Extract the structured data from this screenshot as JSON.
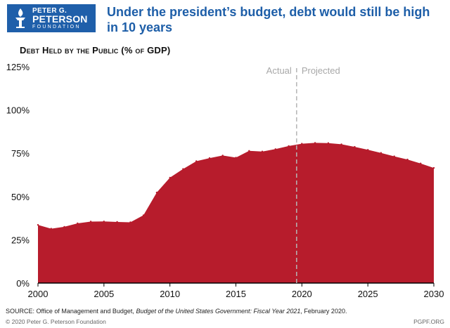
{
  "header": {
    "logo_line1": "PETER G.",
    "logo_line2": "PETERSON",
    "logo_line3": "FOUNDATION",
    "logo_icon": "torch-icon",
    "title": "Under the president’s budget, debt would still be high in 10 years"
  },
  "chart_data": {
    "type": "area",
    "title": "Debt Held by the Public (% of GDP)",
    "xlabel": "",
    "ylabel": "",
    "x": [
      2000,
      2001,
      2002,
      2003,
      2004,
      2005,
      2006,
      2007,
      2008,
      2009,
      2010,
      2011,
      2012,
      2013,
      2014,
      2015,
      2016,
      2017,
      2018,
      2019,
      2020,
      2021,
      2022,
      2023,
      2024,
      2025,
      2026,
      2027,
      2028,
      2029,
      2030
    ],
    "series": [
      {
        "name": "Debt held by the public",
        "values": [
          33.6,
          31.4,
          32.5,
          34.5,
          35.5,
          35.6,
          35.3,
          35.1,
          39.2,
          52.3,
          60.9,
          65.9,
          70.4,
          72.2,
          73.7,
          72.5,
          76.4,
          76.0,
          77.4,
          79.2,
          80.5,
          81.0,
          80.9,
          80.2,
          78.7,
          77.0,
          75.2,
          73.2,
          71.4,
          69.1,
          66.5
        ]
      }
    ],
    "xlim": [
      2000,
      2030
    ],
    "ylim": [
      0,
      125
    ],
    "y_ticks": [
      0,
      25,
      50,
      75,
      100,
      125
    ],
    "y_tick_labels": [
      "0%",
      "25%",
      "50%",
      "75%",
      "100%",
      "125%"
    ],
    "x_ticks": [
      2000,
      2005,
      2010,
      2015,
      2020,
      2025,
      2030
    ],
    "x_tick_labels": [
      "2000",
      "2005",
      "2010",
      "2015",
      "2020",
      "2025",
      "2030"
    ],
    "divider_x": 2019.6,
    "actual_label": "Actual",
    "projected_label": "Projected",
    "grid": false,
    "colors": {
      "fill": "#b71c2c",
      "axis": "#000000",
      "divider": "#b5b5b5",
      "annotation": "#a8a8a8"
    }
  },
  "footer": {
    "source_prefix": "SOURCE: Office of Management and Budget, ",
    "source_italic": "Budget of the United States Government: Fiscal Year 2021",
    "source_suffix": ", February 2020.",
    "copyright": "© 2020 Peter G. Peterson Foundation",
    "website": "PGPF.ORG"
  }
}
